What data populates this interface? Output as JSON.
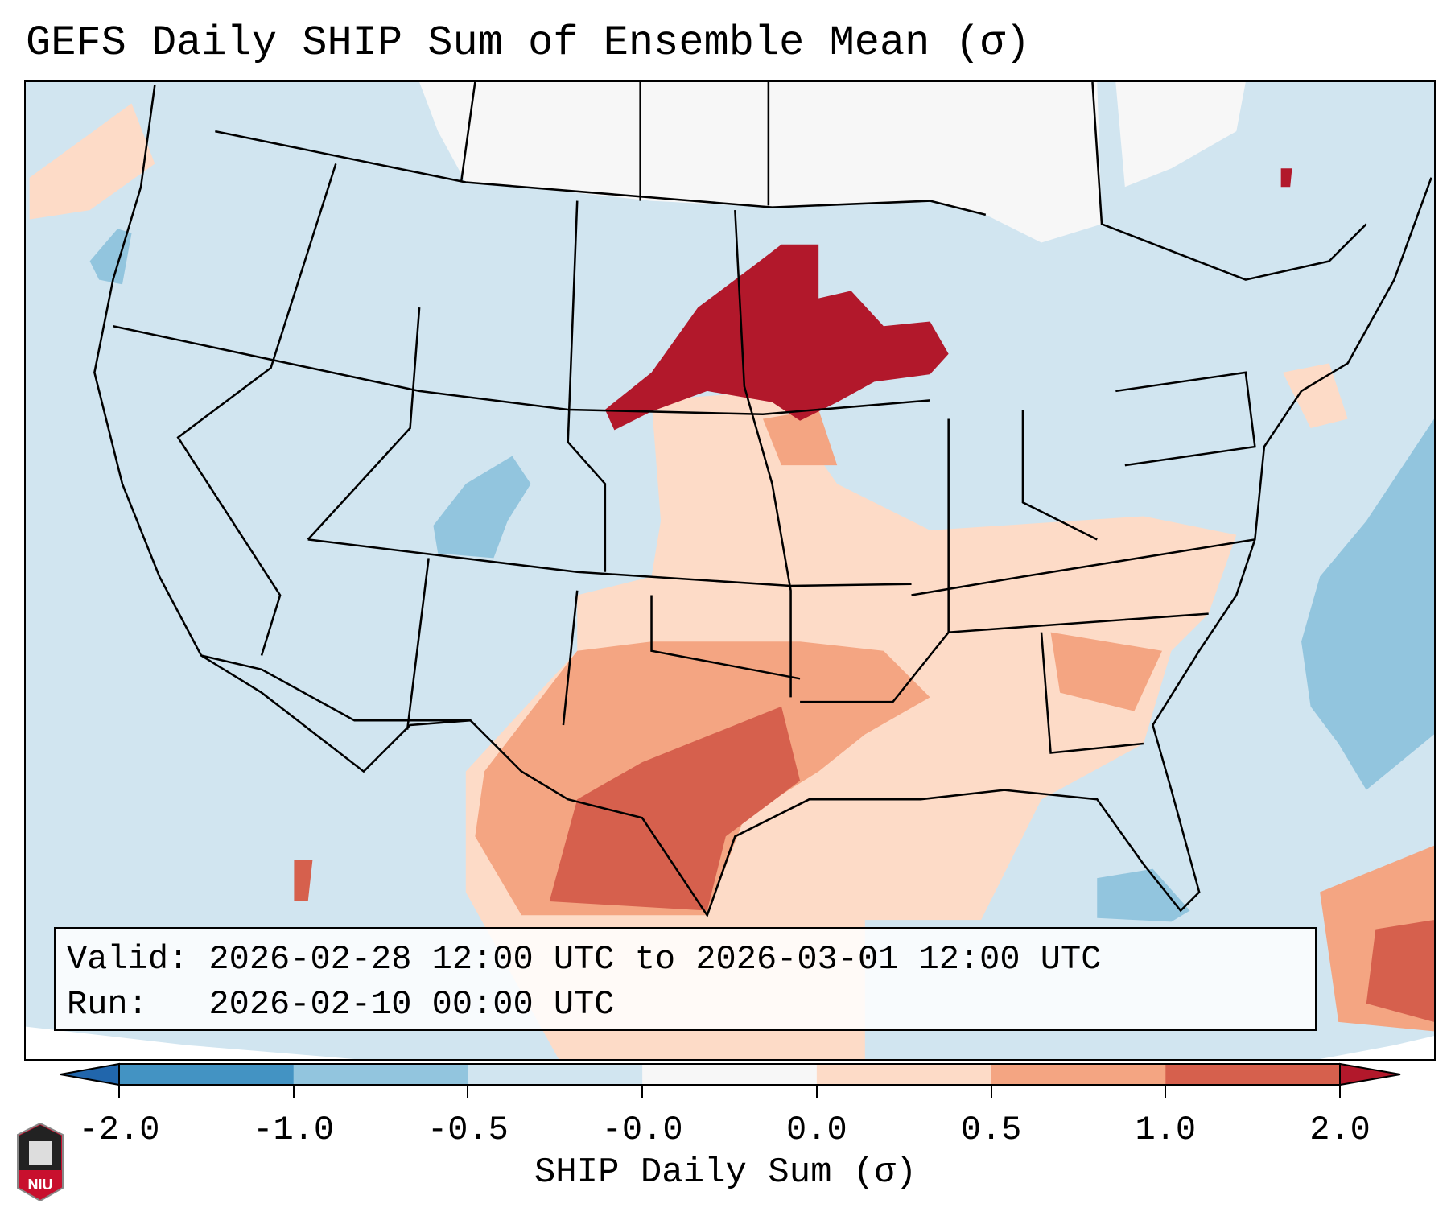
{
  "title": "GEFS Daily SHIP Sum of Ensemble Mean (σ)",
  "info": {
    "valid_line": "Valid: 2026-02-28 12:00 UTC to 2026-03-01 12:00 UTC",
    "run_line": "Run:   2026-02-10 00:00 UTC"
  },
  "colorbar": {
    "label": "SHIP Daily Sum (σ)",
    "ticks": [
      "-2.0",
      "-1.0",
      "-0.5",
      "-0.0",
      "0.0",
      "0.5",
      "1.0",
      "2.0"
    ],
    "colors": [
      "#4393c3",
      "#92c5de",
      "#d1e5f0",
      "#f7f7f7",
      "#fddbc7",
      "#f4a582",
      "#d6604d"
    ],
    "under_color": "#2166ac",
    "over_color": "#b2182b"
  },
  "logo": {
    "text": "NIU"
  }
}
